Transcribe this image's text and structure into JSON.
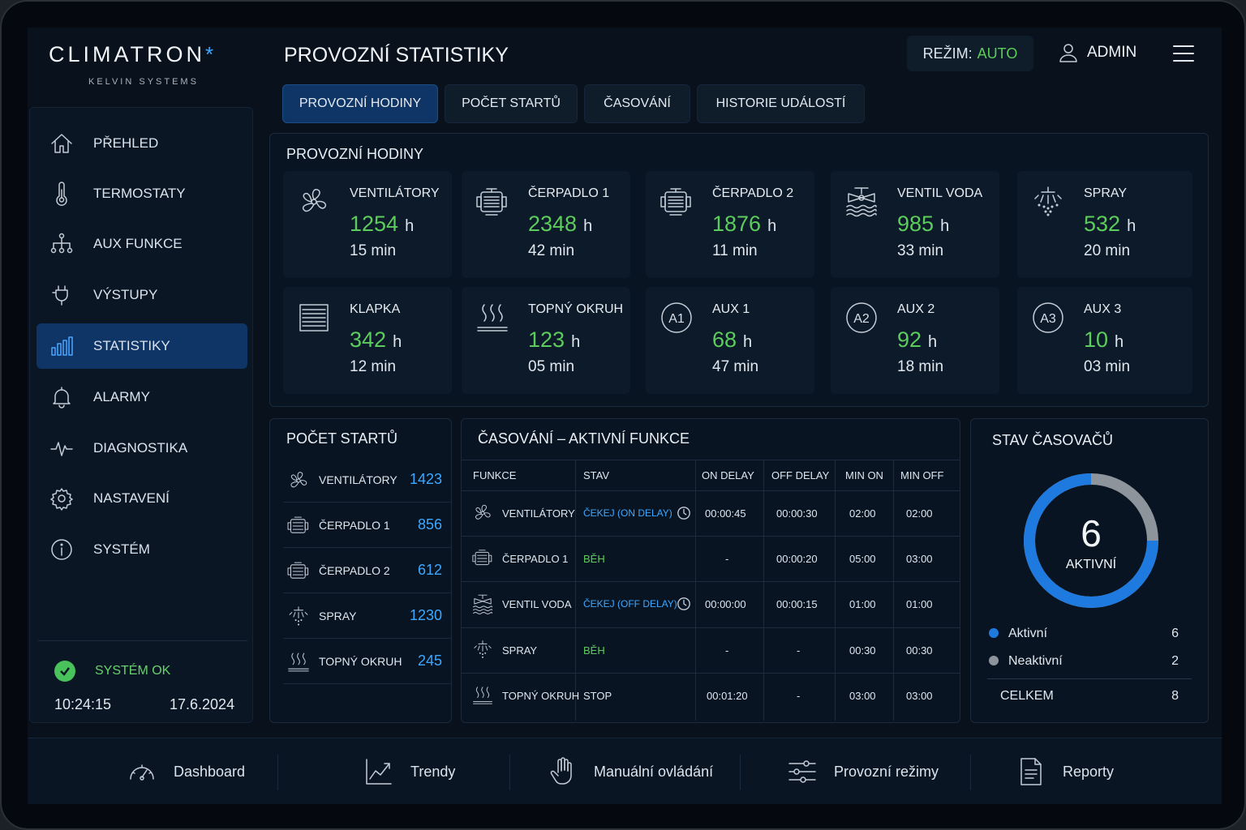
{
  "brand": {
    "name": "CLIMATRON",
    "star": "*",
    "sub": "KELVIN SYSTEMS"
  },
  "sidebar": {
    "items": [
      {
        "label": "PŘEHLED",
        "icon": "home-icon"
      },
      {
        "label": "TERMOSTATY",
        "icon": "thermometer-icon"
      },
      {
        "label": "AUX FUNKCE",
        "icon": "network-icon"
      },
      {
        "label": "VÝSTUPY",
        "icon": "plug-icon"
      },
      {
        "label": "STATISTIKY",
        "icon": "bar-chart-icon",
        "active": true
      },
      {
        "label": "ALARMY",
        "icon": "bell-icon"
      },
      {
        "label": "DIAGNOSTIKA",
        "icon": "pulse-icon"
      },
      {
        "label": "NASTAVENÍ",
        "icon": "gear-icon"
      },
      {
        "label": "SYSTÉM",
        "icon": "info-icon"
      }
    ],
    "status": "SYSTÉM OK",
    "time": "10:24:15",
    "date": "17.6.2024"
  },
  "header": {
    "title": "PROVOZNÍ STATISTIKY",
    "mode_label": "REŽIM:",
    "mode_value": "AUTO",
    "user": "ADMIN"
  },
  "tabs": [
    {
      "label": "PROVOZNÍ HODINY",
      "active": true
    },
    {
      "label": "POČET STARTŮ"
    },
    {
      "label": "ČASOVÁNÍ"
    },
    {
      "label": "HISTORIE UDÁLOSTÍ"
    }
  ],
  "hours": {
    "title": "PROVOZNÍ HODINY",
    "unit": "h",
    "cards": [
      {
        "name": "VENTILÁTORY",
        "hours": "1254",
        "minutes": "15 min",
        "icon": "fan-icon"
      },
      {
        "name": "ČERPADLO 1",
        "hours": "2348",
        "minutes": "42 min",
        "icon": "pump-icon"
      },
      {
        "name": "ČERPADLO 2",
        "hours": "1876",
        "minutes": "11 min",
        "icon": "pump-icon"
      },
      {
        "name": "VENTIL VODA",
        "hours": "985",
        "minutes": "33 min",
        "icon": "valve-icon"
      },
      {
        "name": "SPRAY",
        "hours": "532",
        "minutes": "20 min",
        "icon": "spray-icon"
      },
      {
        "name": "KLAPKA",
        "hours": "342",
        "minutes": "12 min",
        "icon": "damper-icon"
      },
      {
        "name": "TOPNÝ OKRUH",
        "hours": "123",
        "minutes": "05 min",
        "icon": "heating-icon"
      },
      {
        "name": "AUX 1",
        "hours": "68",
        "minutes": "47 min",
        "icon": "a1-icon",
        "badge": "A1"
      },
      {
        "name": "AUX 2",
        "hours": "92",
        "minutes": "18 min",
        "icon": "a2-icon",
        "badge": "A2"
      },
      {
        "name": "AUX 3",
        "hours": "10",
        "minutes": "03 min",
        "icon": "a3-icon",
        "badge": "A3"
      }
    ]
  },
  "starts": {
    "title": "POČET STARTŮ",
    "rows": [
      {
        "name": "VENTILÁTORY",
        "value": "1423",
        "icon": "fan-icon"
      },
      {
        "name": "ČERPADLO 1",
        "value": "856",
        "icon": "pump-icon"
      },
      {
        "name": "ČERPADLO 2",
        "value": "612",
        "icon": "pump-icon"
      },
      {
        "name": "SPRAY",
        "value": "1230",
        "icon": "spray-icon"
      },
      {
        "name": "TOPNÝ OKRUH",
        "value": "245",
        "icon": "heating-icon"
      }
    ]
  },
  "timing": {
    "title": "ČASOVÁNÍ – AKTIVNÍ FUNKCE",
    "columns": [
      "FUNKCE",
      "STAV",
      "ON DELAY",
      "OFF DELAY",
      "MIN ON",
      "MIN OFF"
    ],
    "rows": [
      {
        "name": "VENTILÁTORY",
        "state": "ČEKEJ (ON DELAY)",
        "state_color": "#3ea8ff",
        "on": "00:00:45",
        "off": "00:00:30",
        "min_on": "02:00",
        "min_off": "02:00",
        "icon": "fan-icon",
        "clock": true
      },
      {
        "name": "ČERPADLO 1",
        "state": "BĚH",
        "state_color": "#5ccc5c",
        "on": "-",
        "off": "00:00:20",
        "min_on": "05:00",
        "min_off": "03:00",
        "icon": "pump-icon"
      },
      {
        "name": "VENTIL VODA",
        "state": "ČEKEJ (OFF DELAY)",
        "state_color": "#3ea8ff",
        "on": "00:00:00",
        "off": "00:00:15",
        "min_on": "01:00",
        "min_off": "01:00",
        "icon": "valve-icon",
        "clock": true
      },
      {
        "name": "SPRAY",
        "state": "BĚH",
        "state_color": "#5ccc5c",
        "on": "-",
        "off": "-",
        "min_on": "00:30",
        "min_off": "00:30",
        "icon": "spray-icon"
      },
      {
        "name": "TOPNÝ OKRUH",
        "state": "STOP",
        "state_color": "#dfe6ee",
        "on": "00:01:20",
        "off": "-",
        "min_on": "03:00",
        "min_off": "03:00",
        "icon": "heating-icon"
      }
    ]
  },
  "timers": {
    "title": "STAV ČASOVAČŮ",
    "active_count": "6",
    "active_label": "AKTIVNÍ",
    "legend": [
      {
        "label": "Aktivní",
        "value": "6",
        "color": "#1f7ae0"
      },
      {
        "label": "Neaktivní",
        "value": "2",
        "color": "#8d949c"
      }
    ],
    "total_label": "CELKEM",
    "total_value": "8",
    "active_fraction": 0.75
  },
  "bottom": [
    {
      "label": "Dashboard",
      "icon": "gauge-icon"
    },
    {
      "label": "Trendy",
      "icon": "trend-icon"
    },
    {
      "label": "Manuální ovládání",
      "icon": "hand-icon"
    },
    {
      "label": "Provozní režimy",
      "icon": "sliders-icon"
    },
    {
      "label": "Reporty",
      "icon": "report-icon"
    }
  ]
}
